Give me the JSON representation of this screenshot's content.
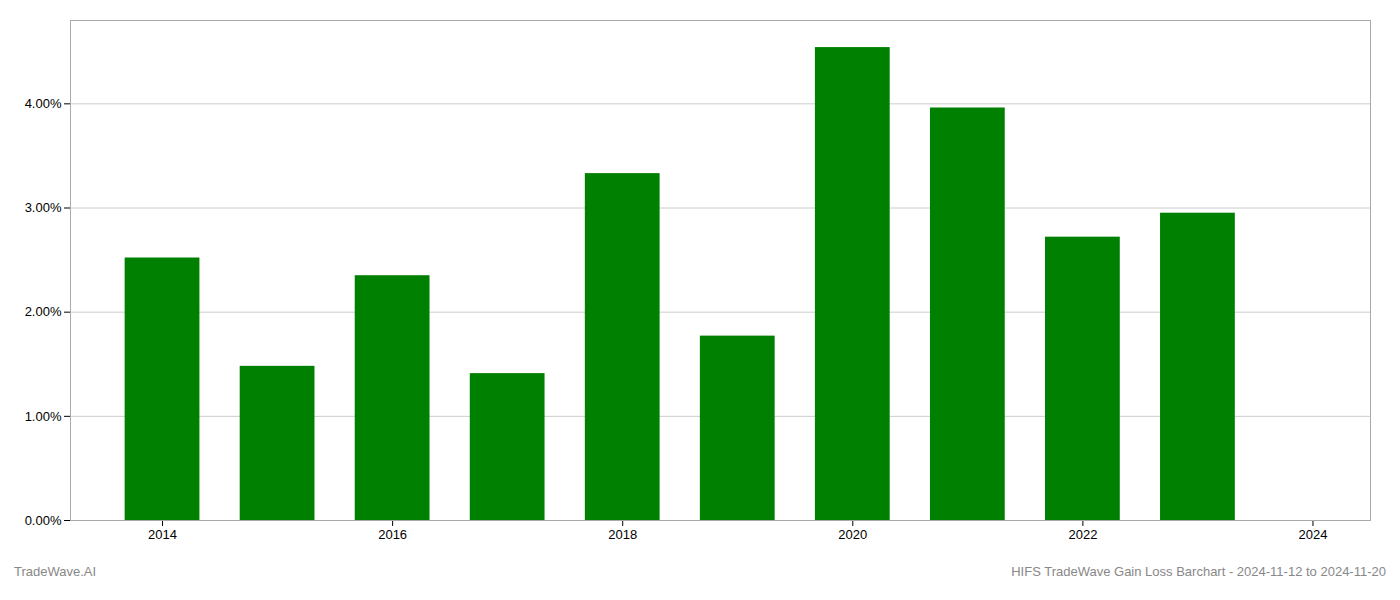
{
  "chart_data": {
    "type": "bar",
    "x": [
      2014,
      2015,
      2016,
      2017,
      2018,
      2019,
      2020,
      2021,
      2022,
      2023
    ],
    "values": [
      0.0252,
      0.0148,
      0.0235,
      0.0141,
      0.0333,
      0.0177,
      0.0454,
      0.0396,
      0.0272,
      0.0295
    ],
    "color": "#008000",
    "xlim": [
      2013.2,
      2024.5
    ],
    "xticks": [
      2014,
      2016,
      2018,
      2020,
      2022,
      2024
    ],
    "ylim": [
      0.0,
      0.048
    ],
    "yticks": [
      {
        "value": 0.0,
        "label": "0.00%"
      },
      {
        "value": 0.01,
        "label": "1.00%"
      },
      {
        "value": 0.02,
        "label": "2.00%"
      },
      {
        "value": 0.03,
        "label": "3.00%"
      },
      {
        "value": 0.04,
        "label": "4.00%"
      }
    ],
    "grid": true,
    "annotations": [
      "TradeWave.AI",
      "HIFS TradeWave Gain Loss Barchart - 2024-11-12 to 2024-11-20"
    ]
  }
}
